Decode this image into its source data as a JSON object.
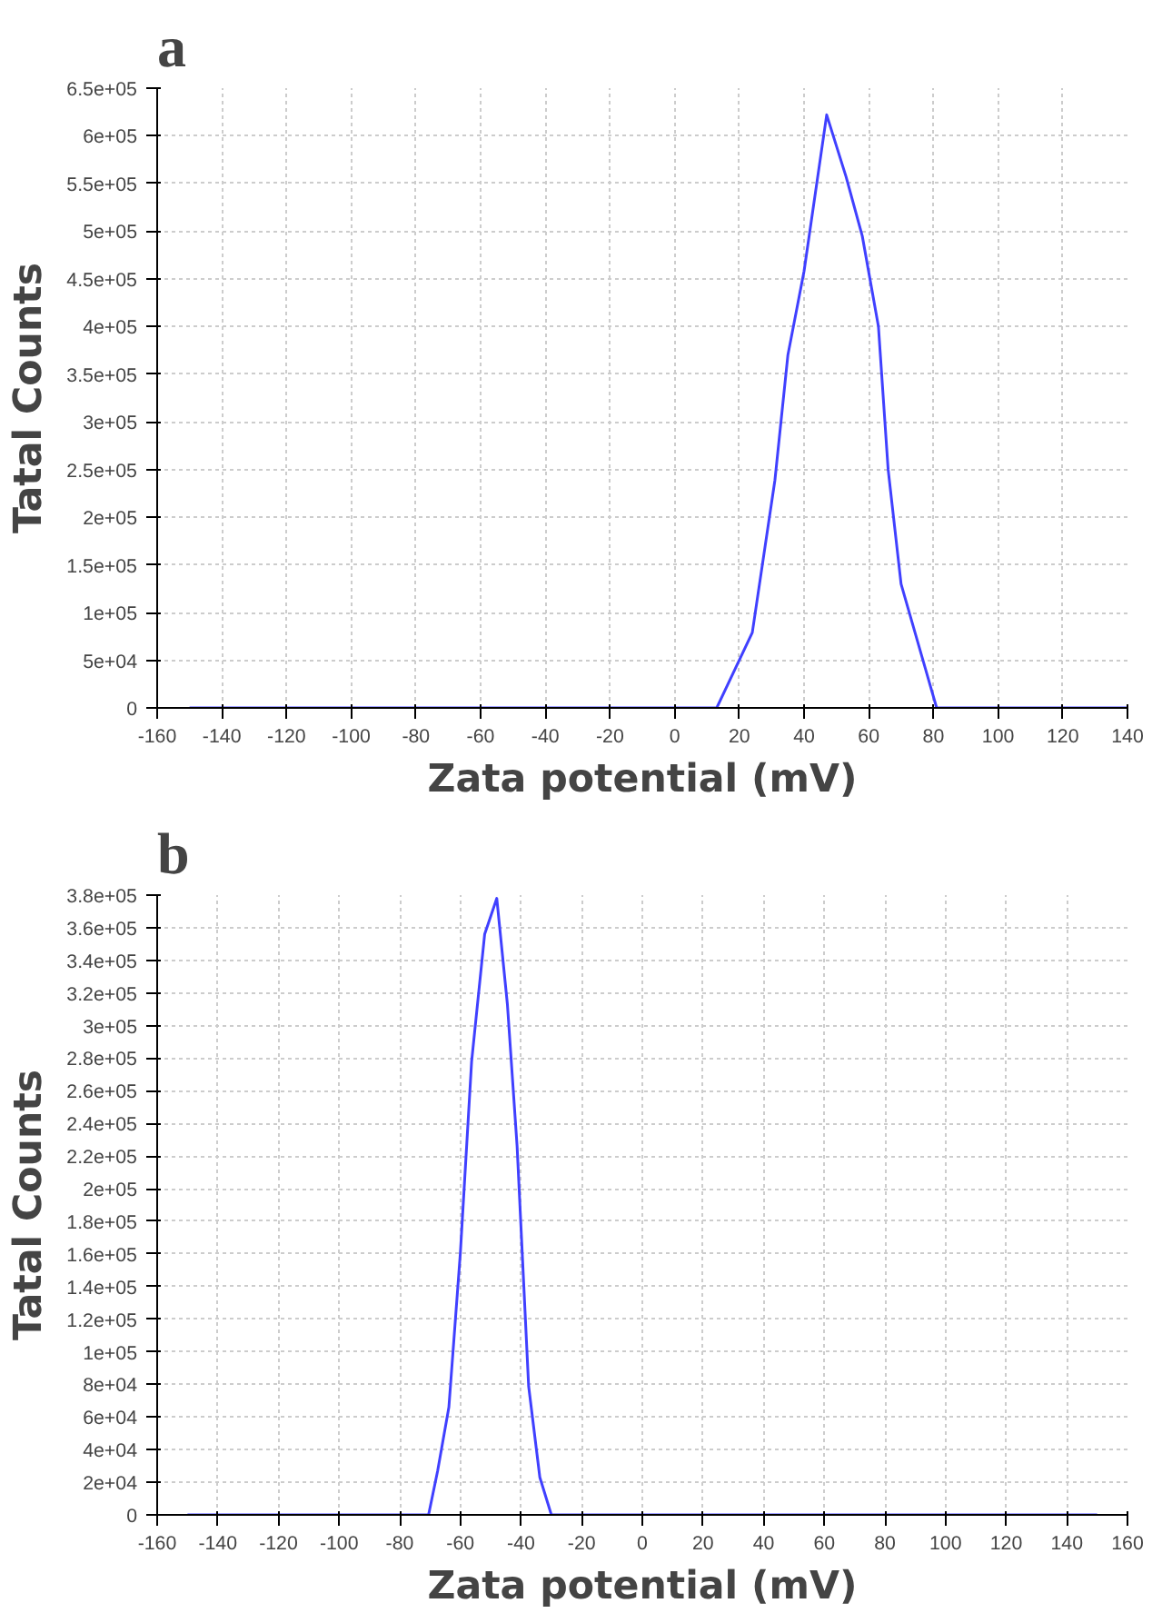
{
  "chart_data": [
    {
      "type": "line",
      "title": "a",
      "xlabel": "Zata potential (mV)",
      "ylabel": "Tatal Counts",
      "x": [
        -150,
        13,
        24,
        31,
        35,
        40,
        47,
        53,
        58,
        63,
        66,
        70,
        81,
        140
      ],
      "series": [
        {
          "color": "#4040ff",
          "values": [
            0,
            0,
            79000,
            239000,
            370000,
            458000,
            622000,
            557000,
            495000,
            400000,
            250000,
            130000,
            0,
            0
          ]
        }
      ],
      "xlim": [
        -160,
        140
      ],
      "xticks": [
        -160,
        -140,
        -120,
        -100,
        -80,
        -60,
        -40,
        -20,
        0,
        20,
        40,
        60,
        80,
        100,
        120,
        140
      ],
      "ylim": [
        0,
        650000
      ],
      "yticks": [
        0,
        {
          "value": 50000,
          "label": "5e+04"
        },
        {
          "value": 100000,
          "label": "1e+05"
        },
        {
          "value": 150000,
          "label": "1.5e+05"
        },
        {
          "value": 200000,
          "label": "2e+05"
        },
        {
          "value": 250000,
          "label": "2.5e+05"
        },
        {
          "value": 300000,
          "label": "3e+05"
        },
        {
          "value": 350000,
          "label": "3.5e+05"
        },
        {
          "value": 400000,
          "label": "4e+05"
        },
        {
          "value": 450000,
          "label": "4.5e+05"
        },
        {
          "value": 500000,
          "label": "5e+05"
        },
        {
          "value": 550000,
          "label": "5.5e+05"
        },
        {
          "value": 600000,
          "label": "6e+05"
        },
        {
          "value": 650000,
          "label": "6.5e+05"
        }
      ],
      "grid": true
    },
    {
      "type": "line",
      "title": "b",
      "xlabel": "Zata potential (mV)",
      "ylabel": "Tatal Counts",
      "x": [
        -150,
        -70.5,
        -67.5,
        -63.8,
        -60,
        -56.3,
        -52,
        -48,
        -44.5,
        -41.3,
        -37.5,
        -33.8,
        -30,
        150
      ],
      "series": [
        {
          "color": "#4040ff",
          "values": [
            0,
            0,
            27000,
            66000,
            161000,
            278000,
            356000,
            378000,
            313000,
            226000,
            79000,
            23000,
            0,
            0
          ]
        }
      ],
      "xlim": [
        -160,
        160
      ],
      "xticks": [
        -160,
        -140,
        -120,
        -100,
        -80,
        -60,
        -40,
        -20,
        0,
        20,
        40,
        60,
        80,
        100,
        120,
        140,
        160
      ],
      "ylim": [
        0,
        380000
      ],
      "yticks": [
        0,
        {
          "value": 20000,
          "label": "2e+04"
        },
        {
          "value": 40000,
          "label": "4e+04"
        },
        {
          "value": 60000,
          "label": "6e+04"
        },
        {
          "value": 80000,
          "label": "8e+04"
        },
        {
          "value": 100000,
          "label": "1e+05"
        },
        {
          "value": 120000,
          "label": "1.2e+05"
        },
        {
          "value": 140000,
          "label": "1.4e+05"
        },
        {
          "value": 160000,
          "label": "1.6e+05"
        },
        {
          "value": 180000,
          "label": "1.8e+05"
        },
        {
          "value": 200000,
          "label": "2e+05"
        },
        {
          "value": 220000,
          "label": "2.2e+05"
        },
        {
          "value": 240000,
          "label": "2.4e+05"
        },
        {
          "value": 260000,
          "label": "2.6e+05"
        },
        {
          "value": 280000,
          "label": "2.8e+05"
        },
        {
          "value": 300000,
          "label": "3e+05"
        },
        {
          "value": 320000,
          "label": "3.2e+05"
        },
        {
          "value": 340000,
          "label": "3.4e+05"
        },
        {
          "value": 360000,
          "label": "3.6e+05"
        },
        {
          "value": 380000,
          "label": "3.8e+05"
        }
      ],
      "grid": true
    }
  ]
}
